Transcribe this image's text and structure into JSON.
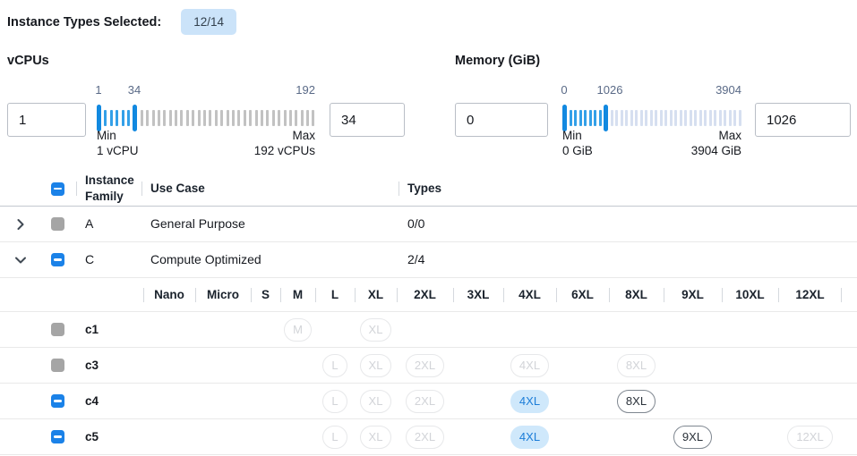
{
  "header": {
    "label": "Instance Types Selected:",
    "badge": "12/14"
  },
  "filters": {
    "vcpus": {
      "title": "vCPUs",
      "from_value": "1",
      "to_value": "34",
      "scale": {
        "start": "1",
        "handle": "34",
        "end": "192"
      },
      "min_label": "Min",
      "min_detail": "1 vCPU",
      "max_label": "Max",
      "max_detail": "192 vCPUs"
    },
    "memory": {
      "title": "Memory (GiB)",
      "from_value": "0",
      "to_value": "1026",
      "scale": {
        "start": "0",
        "handle": "1026",
        "end": "3904"
      },
      "min_label": "Min",
      "min_detail": "0 GiB",
      "max_label": "Max",
      "max_detail": "3904 GiB"
    }
  },
  "table": {
    "headers": {
      "family": "Instance Family",
      "use_case": "Use Case",
      "types": "Types"
    },
    "header_checkbox_state": "indeterminate",
    "family_rows": [
      {
        "family": "A",
        "use_case": "General Purpose",
        "types": "0/0",
        "expanded": false,
        "checkbox": "disabled"
      },
      {
        "family": "C",
        "use_case": "Compute Optimized",
        "types": "2/4",
        "expanded": true,
        "checkbox": "indeterminate"
      }
    ],
    "size_columns": [
      "Nano",
      "Micro",
      "S",
      "M",
      "L",
      "XL",
      "2XL",
      "3XL",
      "4XL",
      "6XL",
      "8XL",
      "9XL",
      "10XL",
      "12XL"
    ],
    "instance_rows": [
      {
        "name": "c1",
        "checkbox": "disabled",
        "pills": [
          {
            "label": "M",
            "size": "M",
            "state": "disabled"
          },
          {
            "label": "XL",
            "size": "XL",
            "state": "disabled"
          }
        ]
      },
      {
        "name": "c3",
        "checkbox": "disabled",
        "pills": [
          {
            "label": "L",
            "size": "L",
            "state": "disabled"
          },
          {
            "label": "XL",
            "size": "XL",
            "state": "disabled"
          },
          {
            "label": "2XL",
            "size": "2XL",
            "state": "disabled"
          },
          {
            "label": "4XL",
            "size": "4XL",
            "state": "disabled"
          },
          {
            "label": "8XL",
            "size": "8XL",
            "state": "disabled"
          }
        ]
      },
      {
        "name": "c4",
        "checkbox": "indeterminate",
        "pills": [
          {
            "label": "L",
            "size": "L",
            "state": "disabled"
          },
          {
            "label": "XL",
            "size": "XL",
            "state": "disabled"
          },
          {
            "label": "2XL",
            "size": "2XL",
            "state": "disabled"
          },
          {
            "label": "4XL",
            "size": "4XL",
            "state": "selected"
          },
          {
            "label": "8XL",
            "size": "8XL",
            "state": "enabled"
          }
        ]
      },
      {
        "name": "c5",
        "checkbox": "indeterminate",
        "pills": [
          {
            "label": "L",
            "size": "L",
            "state": "disabled"
          },
          {
            "label": "XL",
            "size": "XL",
            "state": "disabled"
          },
          {
            "label": "2XL",
            "size": "2XL",
            "state": "disabled"
          },
          {
            "label": "4XL",
            "size": "4XL",
            "state": "selected"
          },
          {
            "label": "9XL",
            "size": "9XL",
            "state": "enabled"
          },
          {
            "label": "12XL",
            "size": "12XL",
            "state": "disabled"
          }
        ]
      }
    ]
  },
  "colors": {
    "accent_blue": "#1b82e8",
    "badge_bg": "#cbe3f9",
    "slider_handle": "#1289e0",
    "slider_tick_selected": "#33a0e8",
    "slider_tick_vcpu_unselected": "#c2c2c2",
    "slider_tick_memory_unselected": "#d6dff0",
    "selected_pill_bg": "#cfe8fb",
    "selected_pill_text": "#1c7dd8",
    "disabled_checkbox": "#a5a5a5"
  }
}
